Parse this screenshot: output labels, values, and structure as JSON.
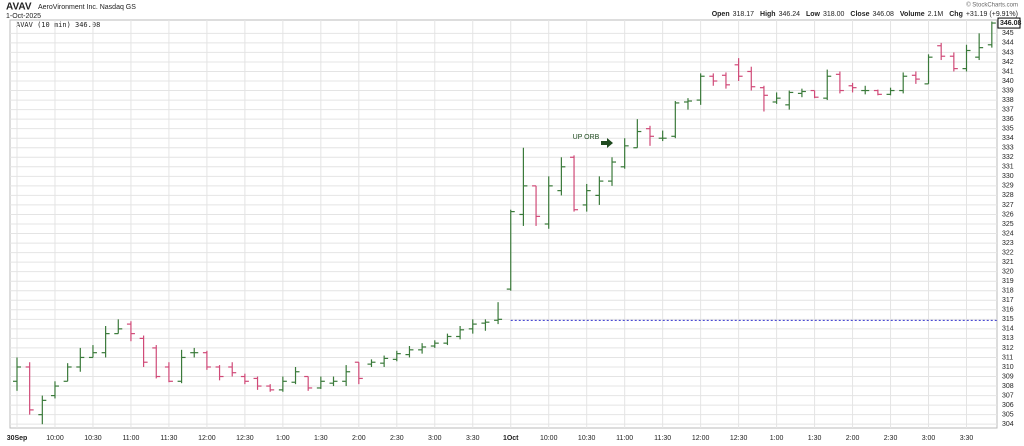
{
  "chart_data": {
    "type": "ohlc",
    "symbol": "AVAV",
    "company": "AeroVironment Inc.  Nasdaq GS",
    "date": "1-Oct-2025",
    "stats": [
      {
        "label": "Open",
        "value": "318.17"
      },
      {
        "label": "High",
        "value": "346.24"
      },
      {
        "label": "Low",
        "value": "318.00"
      },
      {
        "label": "Close",
        "value": "346.08"
      },
      {
        "label": "Volume",
        "value": "2.1M"
      },
      {
        "label": "Chg",
        "value": "+31.19 (+9.91%)"
      }
    ],
    "credit": "© StockCharts.com",
    "legend": "AVAV (10 min) 346.08",
    "last_price": 346.08,
    "annotation": "UP ORB",
    "reference_line": {
      "value": 314.89,
      "color": "#3333cc"
    },
    "up_color": "#3a7a3a",
    "down_color": "#d04a78",
    "categories": [
      "30Sep",
      null,
      null,
      "10:00",
      null,
      null,
      "10:30",
      null,
      null,
      "11:00",
      null,
      null,
      "11:30",
      null,
      null,
      "12:00",
      null,
      null,
      "12:30",
      null,
      null,
      "1:00",
      null,
      null,
      "1:30",
      null,
      null,
      "2:00",
      null,
      null,
      "2:30",
      null,
      null,
      "3:00",
      null,
      null,
      "3:30",
      null,
      null,
      "1Oct",
      null,
      null,
      "10:00",
      null,
      null,
      "10:30",
      null,
      null,
      "11:00",
      null,
      null,
      "11:30",
      null,
      null,
      "12:00",
      null,
      null,
      "12:30",
      null,
      null,
      "1:00",
      null,
      null,
      "1:30",
      null,
      null,
      "2:00",
      null,
      null,
      "2:30",
      null,
      null,
      "3:00",
      null,
      null,
      "3:30",
      null,
      null
    ],
    "open": [
      308.5,
      310,
      305,
      307,
      308.5,
      310,
      311,
      311.5,
      313.5,
      314.5,
      313,
      312,
      310,
      308.5,
      311.5,
      311.5,
      310,
      310,
      309,
      308.8,
      308,
      307.6,
      308.4,
      309,
      307.8,
      308.3,
      308.5,
      310.5,
      310.3,
      310.4,
      310.8,
      311.3,
      311.8,
      312.2,
      312.5,
      313.2,
      314,
      314.6,
      314.9,
      318.17,
      326,
      329,
      325,
      328.5,
      332,
      327,
      328,
      329.5,
      331,
      333,
      335,
      334,
      334.2,
      337.8,
      338,
      340.5,
      340.6,
      341.7,
      341,
      339.3,
      337.8,
      337.5,
      338.7,
      339,
      338.2,
      340.7,
      339.5,
      339,
      339,
      338.6,
      339,
      340.6,
      339.7,
      343.7,
      342.6,
      341.3,
      342.5,
      343.8
    ],
    "high": [
      311,
      310.5,
      307,
      308.5,
      310.4,
      312,
      312.3,
      314.3,
      315,
      314.8,
      313.3,
      312.3,
      310.5,
      311.8,
      312,
      311.7,
      310.2,
      310.5,
      309.3,
      309,
      308.2,
      309,
      310,
      309,
      309,
      309,
      310.2,
      310.5,
      310.8,
      311.2,
      311.7,
      312.2,
      312.5,
      312.8,
      313.5,
      314.3,
      315,
      315,
      316.8,
      326.5,
      333,
      329,
      330,
      332,
      332.2,
      329.2,
      330,
      332,
      334,
      336,
      335.3,
      334.8,
      337.9,
      338.2,
      340.8,
      340.8,
      340.9,
      342.4,
      341.5,
      339.5,
      338.8,
      339,
      339.2,
      339,
      341.2,
      341,
      339.8,
      339.5,
      339.1,
      339.3,
      340.9,
      341,
      342.8,
      344,
      343,
      343.8,
      345,
      346.24
    ],
    "low": [
      307.5,
      305,
      304,
      306.7,
      308.5,
      309.5,
      311,
      311,
      313.5,
      312.7,
      310,
      308.8,
      308.4,
      308.3,
      311,
      309.7,
      308.6,
      309,
      308.2,
      307.6,
      307.4,
      307.4,
      308.2,
      307.5,
      307.7,
      308,
      308,
      308.2,
      310,
      310,
      310.6,
      311,
      311.4,
      312,
      312.3,
      312.9,
      313.5,
      313.8,
      314.5,
      318,
      324.8,
      324.8,
      324.5,
      328,
      326.3,
      326.3,
      327,
      329,
      330.8,
      333,
      333.2,
      333.7,
      334,
      337,
      337.5,
      339.5,
      339.2,
      340,
      339,
      336.8,
      337.6,
      337,
      338.3,
      338.2,
      338,
      338.7,
      338.8,
      338.6,
      338.5,
      338.5,
      338.7,
      339.7,
      339.7,
      342.2,
      341,
      341,
      342.2,
      343.5
    ],
    "close": [
      310,
      305.5,
      306.5,
      308,
      310,
      311,
      311.5,
      313.5,
      314,
      313.5,
      310.5,
      309,
      308.5,
      311,
      311.5,
      310,
      309,
      309.4,
      308.5,
      308,
      307.6,
      308.5,
      309.5,
      307.8,
      308.5,
      308.5,
      309.5,
      308.8,
      310.5,
      310.9,
      311.4,
      311.8,
      312.1,
      312.5,
      313.2,
      313.9,
      314.5,
      314.7,
      315,
      326.3,
      329,
      325.8,
      329,
      331,
      326.5,
      328.5,
      329.5,
      331.5,
      333.2,
      334.7,
      334.2,
      334,
      337.7,
      337.9,
      340.5,
      340,
      339.6,
      340.5,
      339.4,
      338.5,
      338.2,
      338.8,
      338.9,
      338.3,
      340.5,
      339,
      339.3,
      339,
      338.6,
      339,
      340.5,
      340.2,
      342.5,
      342.6,
      341.3,
      343.2,
      343.5,
      346.08
    ],
    "ylim": [
      303.6,
      346.4
    ],
    "yticks": [
      304,
      305,
      306,
      307,
      308,
      309,
      310,
      311,
      312,
      313,
      314,
      315,
      316,
      317,
      318,
      319,
      320,
      321,
      322,
      323,
      324,
      325,
      326,
      327,
      328,
      329,
      330,
      331,
      332,
      333,
      334,
      335,
      336,
      337,
      338,
      339,
      340,
      341,
      342,
      343,
      344,
      345
    ],
    "grid": true
  }
}
